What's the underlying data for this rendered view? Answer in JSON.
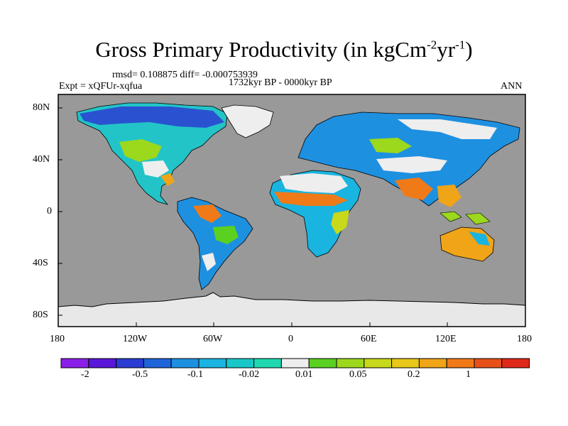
{
  "title": {
    "main": "Gross Primary Productivity (in kgCm",
    "sup1": "-2",
    "mid": "yr",
    "sup2": "-1",
    "end": ")"
  },
  "stats": "rmsd= 0.108875 diff= -0.000753939",
  "experiment": "Expt = xQFUr-xqfua",
  "period": "1732kyr BP - 0000kyr BP",
  "season": "ANN",
  "y_ticks": [
    "80N",
    "40N",
    "0",
    "40S",
    "80S"
  ],
  "x_ticks": [
    "180",
    "120W",
    "60W",
    "0",
    "60E",
    "120E",
    "180"
  ],
  "colorbar": {
    "colors": [
      "#8b1ee8",
      "#5a16d8",
      "#2a3cd4",
      "#1f64d8",
      "#1e90e0",
      "#1ab4e0",
      "#18c8c8",
      "#20d8b0",
      "#eeeeee",
      "#5ad020",
      "#9cd81c",
      "#c8d81a",
      "#e8c818",
      "#f0a418",
      "#f07a18",
      "#e8501a",
      "#e02818"
    ],
    "labels": [
      "-2",
      "-0.5",
      "-0.1",
      "-0.02",
      "0.01",
      "0.05",
      "0.2",
      "1"
    ]
  },
  "map": {
    "ocean_color": "#999999",
    "ice_color": "#e8e8e8"
  }
}
